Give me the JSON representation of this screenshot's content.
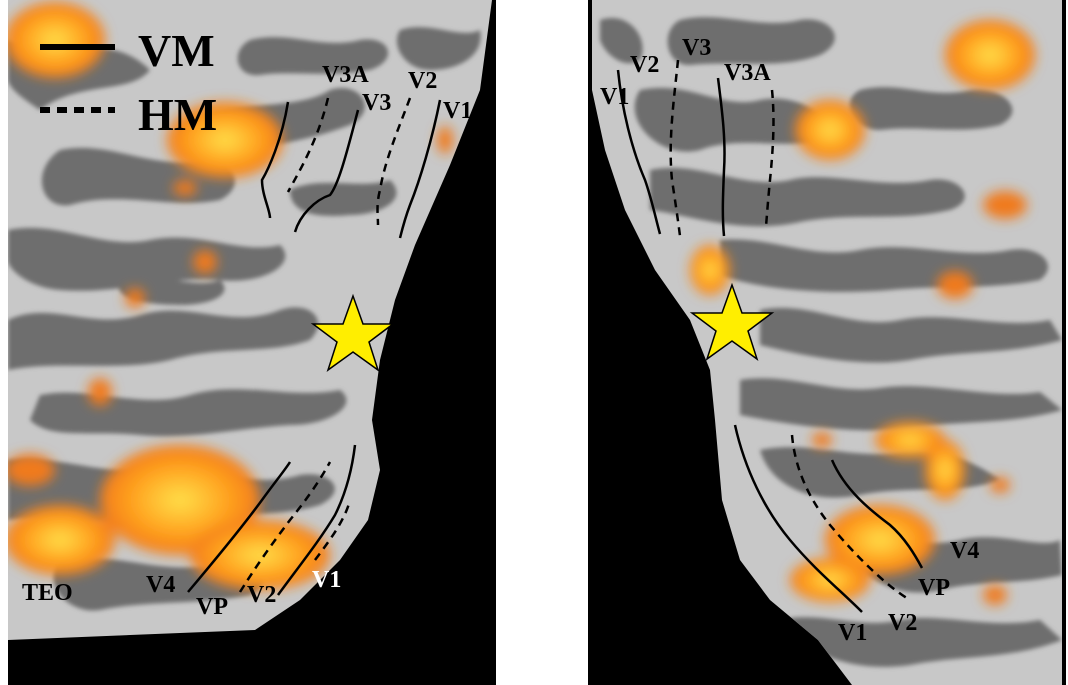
{
  "legend": {
    "solid_label": "VM",
    "dashed_label": "HM"
  },
  "left_panel": {
    "labels": {
      "v3a": "V3A",
      "v3": "V3",
      "v2_top": "V2",
      "v1_top": "V1",
      "teo": "TEO",
      "v4": "V4",
      "vp": "VP",
      "v2_bottom": "V2",
      "v1_bottom": "V1"
    }
  },
  "right_panel": {
    "labels": {
      "v1_top": "V1",
      "v2_top": "V2",
      "v3": "V3",
      "v3a": "V3A",
      "v4": "V4",
      "vp": "VP",
      "v1_bottom": "V1",
      "v2_bottom": "V2"
    }
  },
  "colors": {
    "gyrus": "#c8c8c8",
    "sulcus": "#6e6e6e",
    "activation_core": "#ffd23a",
    "activation_edge": "#f07a1a",
    "background_outside": "#000000",
    "star_fill": "#ffee00"
  }
}
